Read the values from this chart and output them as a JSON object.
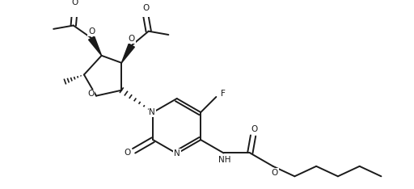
{
  "background": "#ffffff",
  "line_color": "#1a1a1a",
  "line_width": 1.4,
  "font_size": 7.5,
  "figsize": [
    5.12,
    2.34
  ],
  "dpi": 100,
  "xlim": [
    0,
    10.24
  ],
  "ylim": [
    0,
    4.68
  ]
}
